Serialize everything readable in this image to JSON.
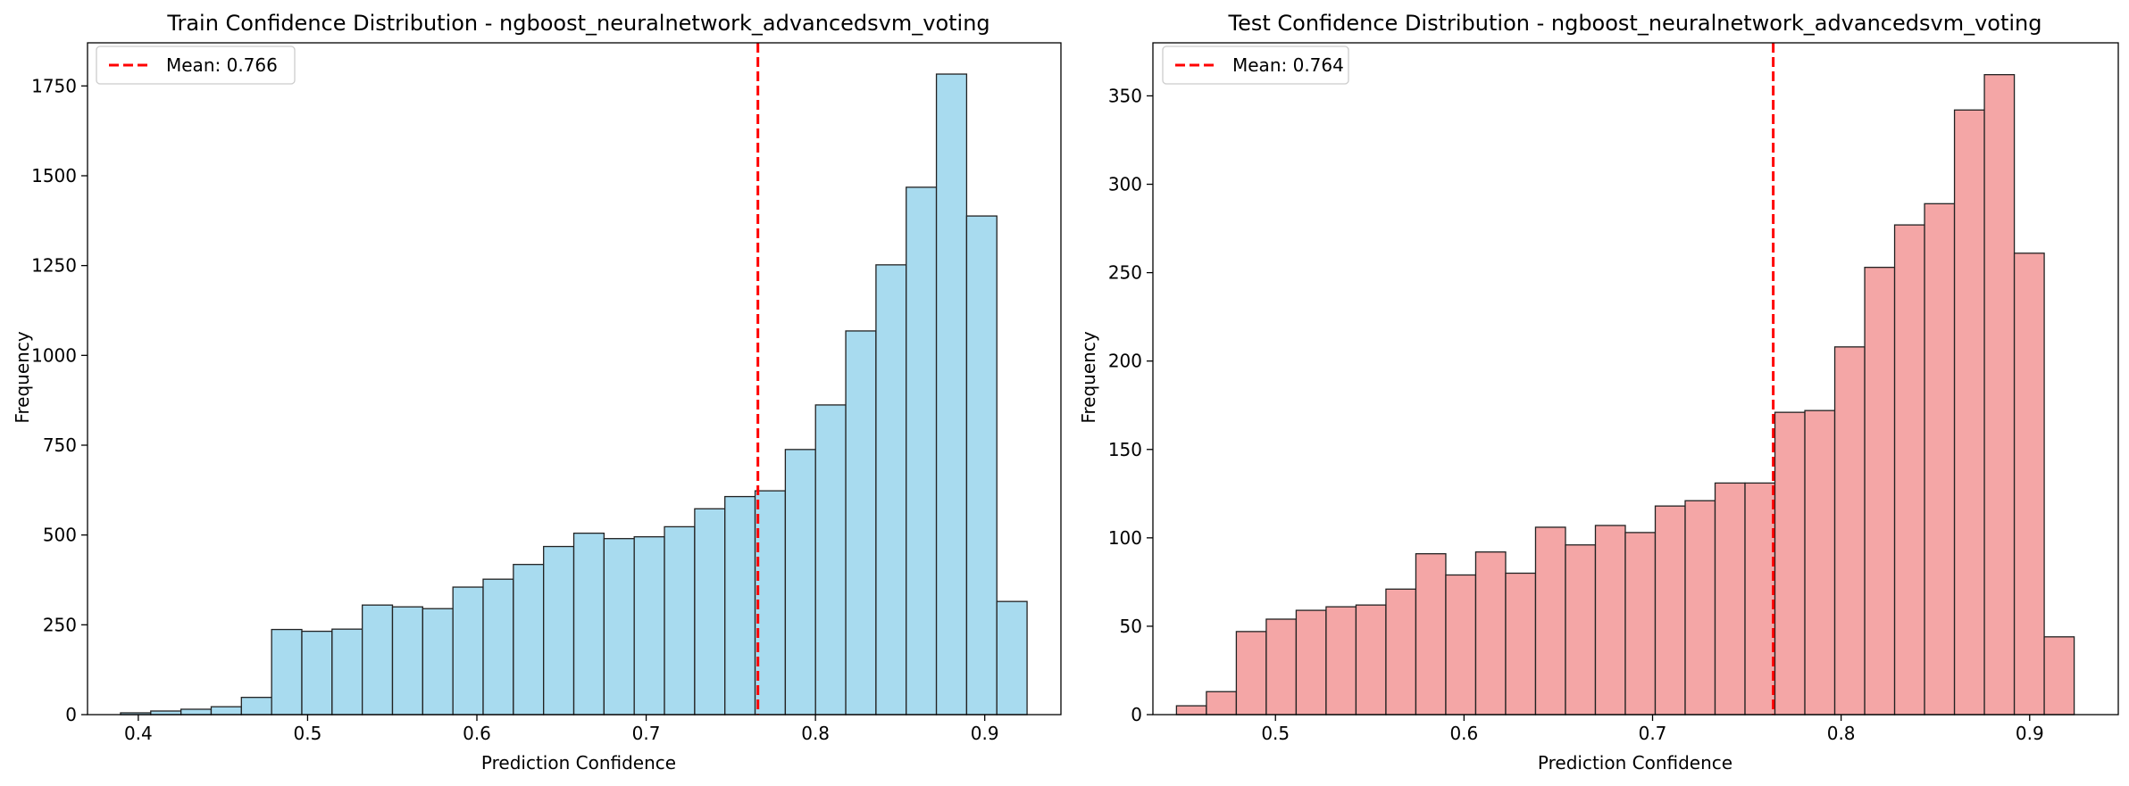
{
  "chart_data": [
    {
      "type": "bar",
      "title": "Train Confidence Distribution - ngboost_neuralnetwork_advancedsvm_voting",
      "xlabel": "Prediction Confidence",
      "ylabel": "Frequency",
      "xlim": [
        0.37,
        0.945
      ],
      "ylim": [
        0,
        1870
      ],
      "xticks": [
        0.4,
        0.5,
        0.6,
        0.7,
        0.8,
        0.9
      ],
      "xtick_labels": [
        "0.4",
        "0.5",
        "0.6",
        "0.7",
        "0.8",
        "0.9"
      ],
      "yticks": [
        0,
        250,
        500,
        750,
        1000,
        1250,
        1500,
        1750
      ],
      "ytick_labels": [
        "0",
        "250",
        "500",
        "750",
        "1000",
        "1250",
        "1500",
        "1750"
      ],
      "bin_start": 0.3895,
      "bin_width": 0.01785,
      "values": [
        5,
        10,
        15,
        22,
        48,
        237,
        232,
        238,
        305,
        300,
        295,
        355,
        377,
        418,
        468,
        505,
        490,
        495,
        523,
        573,
        607,
        623,
        738,
        862,
        1068,
        1252,
        1468,
        1783,
        1388,
        315
      ],
      "bar_color": "#a8dbef",
      "mean": 0.766,
      "mean_color": "#ff0000",
      "legend_label": "Mean: 0.766",
      "legend_position": "top-left",
      "grid": false
    },
    {
      "type": "bar",
      "title": "Test Confidence Distribution - ngboost_neuralnetwork_advancedsvm_voting",
      "xlabel": "Prediction Confidence",
      "ylabel": "Frequency",
      "xlim": [
        0.435,
        0.947
      ],
      "ylim": [
        0,
        380
      ],
      "xticks": [
        0.5,
        0.6,
        0.7,
        0.8,
        0.9
      ],
      "xtick_labels": [
        "0.5",
        "0.6",
        "0.7",
        "0.8",
        "0.9"
      ],
      "yticks": [
        0,
        50,
        100,
        150,
        200,
        250,
        300,
        350
      ],
      "ytick_labels": [
        "0",
        "50",
        "100",
        "150",
        "200",
        "250",
        "300",
        "350"
      ],
      "bin_start": 0.4475,
      "bin_width": 0.01587,
      "values": [
        5,
        13,
        47,
        54,
        59,
        61,
        62,
        71,
        91,
        79,
        92,
        80,
        106,
        96,
        107,
        103,
        118,
        121,
        131,
        131,
        171,
        172,
        208,
        253,
        277,
        289,
        342,
        362,
        261,
        44
      ],
      "bar_color": "#f4a6a6",
      "mean": 0.764,
      "mean_color": "#ff0000",
      "legend_label": "Mean: 0.764",
      "legend_position": "top-left",
      "grid": false
    }
  ]
}
